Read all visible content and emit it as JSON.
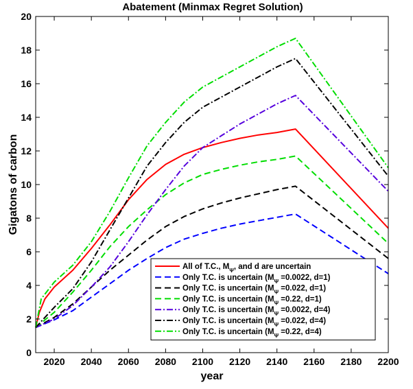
{
  "chart_data": {
    "type": "line",
    "title": "Abatement (Minmax Regret Solution)",
    "xlabel": "year",
    "ylabel": "Gigatons of carbon",
    "xlim": [
      2010,
      2200
    ],
    "ylim": [
      0,
      20
    ],
    "xticks": [
      "2020",
      "2040",
      "2060",
      "2080",
      "2100",
      "2120",
      "2140",
      "2160",
      "2180",
      "2200"
    ],
    "yticks": [
      "0",
      "2",
      "4",
      "6",
      "8",
      "10",
      "12",
      "14",
      "16",
      "18",
      "20"
    ],
    "grid": false,
    "legend_position": "bottom-right",
    "series": [
      {
        "name": "All of T.C., MΨ, and d are uncertain",
        "legend_main": "All of T.C., M",
        "legend_sub": "Ψ",
        "legend_tail": ", and d are uncertain",
        "color": "#ff0000",
        "style": "solid",
        "x": [
          2010,
          2012,
          2015,
          2020,
          2030,
          2040,
          2050,
          2060,
          2070,
          2080,
          2090,
          2100,
          2110,
          2120,
          2130,
          2140,
          2150,
          2200
        ],
        "y": [
          1.5,
          2.4,
          3.2,
          3.9,
          4.9,
          6.2,
          7.6,
          9.1,
          10.3,
          11.2,
          11.8,
          12.2,
          12.5,
          12.75,
          12.95,
          13.1,
          13.3,
          7.4
        ]
      },
      {
        "name": "Only T.C. is uncertain (MΨ =0.0022, d=1)",
        "legend_main": "Only T.C. is uncertain (M",
        "legend_sub": "Ψ",
        "legend_tail": " =0.0022, d=1)",
        "color": "#0000ff",
        "style": "dashed",
        "x": [
          2010,
          2020,
          2030,
          2040,
          2050,
          2060,
          2070,
          2080,
          2090,
          2100,
          2110,
          2120,
          2130,
          2140,
          2150,
          2200
        ],
        "y": [
          1.5,
          1.95,
          2.5,
          3.3,
          4.1,
          4.9,
          5.6,
          6.25,
          6.75,
          7.1,
          7.4,
          7.65,
          7.85,
          8.05,
          8.25,
          4.7
        ]
      },
      {
        "name": "Only T.C. is uncertain (MΨ =0.022, d=1)",
        "legend_main": "Only T.C. is uncertain (M",
        "legend_sub": "Ψ",
        "legend_tail": " =0.022, d=1)",
        "color": "#000000",
        "style": "dashed",
        "x": [
          2010,
          2020,
          2030,
          2040,
          2050,
          2060,
          2070,
          2080,
          2090,
          2100,
          2110,
          2120,
          2130,
          2140,
          2150,
          2200
        ],
        "y": [
          1.5,
          2.1,
          2.9,
          3.9,
          4.9,
          5.8,
          6.7,
          7.5,
          8.1,
          8.55,
          8.9,
          9.2,
          9.45,
          9.7,
          9.9,
          5.6
        ]
      },
      {
        "name": "Only T.C. is uncertain (MΨ =0.22, d=1)",
        "legend_main": "Only T.C. is uncertain (M",
        "legend_sub": "Ψ",
        "legend_tail": " =0.22, d=1)",
        "color": "#00dd00",
        "style": "dashed",
        "x": [
          2010,
          2020,
          2030,
          2040,
          2050,
          2060,
          2070,
          2080,
          2090,
          2100,
          2110,
          2120,
          2130,
          2140,
          2150,
          2200
        ],
        "y": [
          1.5,
          2.4,
          3.6,
          4.9,
          6.3,
          7.5,
          8.5,
          9.4,
          10.1,
          10.6,
          10.9,
          11.15,
          11.35,
          11.5,
          11.7,
          6.5
        ]
      },
      {
        "name": "Only T.C. is uncertain (MΨ =0.0022, d=4)",
        "legend_main": "Only T.C. is uncertain (M",
        "legend_sub": "Ψ",
        "legend_tail": " =0.0022, d=4)",
        "color": "#5500dd",
        "style": "dashdot",
        "x": [
          2010,
          2020,
          2030,
          2040,
          2050,
          2060,
          2070,
          2080,
          2090,
          2100,
          2110,
          2120,
          2130,
          2140,
          2150,
          2200
        ],
        "y": [
          1.5,
          2.0,
          2.8,
          3.9,
          5.1,
          6.6,
          8.2,
          9.7,
          11.1,
          12.2,
          12.9,
          13.6,
          14.2,
          14.8,
          15.3,
          9.6
        ]
      },
      {
        "name": "Only T.C. is uncertain (MΨ =0.022, d=4)",
        "legend_main": "Only T.C. is uncertain (M",
        "legend_sub": "Ψ",
        "legend_tail": " =0.022, d=4)",
        "color": "#000000",
        "style": "dashdot",
        "x": [
          2010,
          2020,
          2030,
          2040,
          2050,
          2060,
          2070,
          2080,
          2090,
          2100,
          2110,
          2120,
          2130,
          2140,
          2150,
          2200
        ],
        "y": [
          1.5,
          2.7,
          3.8,
          5.4,
          7.3,
          9.2,
          11.1,
          12.5,
          13.7,
          14.6,
          15.2,
          15.8,
          16.4,
          17.0,
          17.5,
          10.5
        ]
      },
      {
        "name": "Only T.C. is uncertain (MΨ =0.22, d=4)",
        "legend_main": "Only T.C. is uncertain (M",
        "legend_sub": "Ψ",
        "legend_tail": " =0.22, d=4)",
        "color": "#00dd00",
        "style": "dashdot",
        "x": [
          2010,
          2013,
          2020,
          2030,
          2040,
          2050,
          2060,
          2070,
          2080,
          2090,
          2100,
          2110,
          2120,
          2130,
          2140,
          2150,
          2200
        ],
        "y": [
          1.5,
          3.2,
          4.2,
          5.2,
          6.6,
          8.4,
          10.4,
          12.3,
          13.7,
          14.9,
          15.8,
          16.4,
          17.0,
          17.6,
          18.2,
          18.7,
          11.0
        ]
      }
    ]
  }
}
